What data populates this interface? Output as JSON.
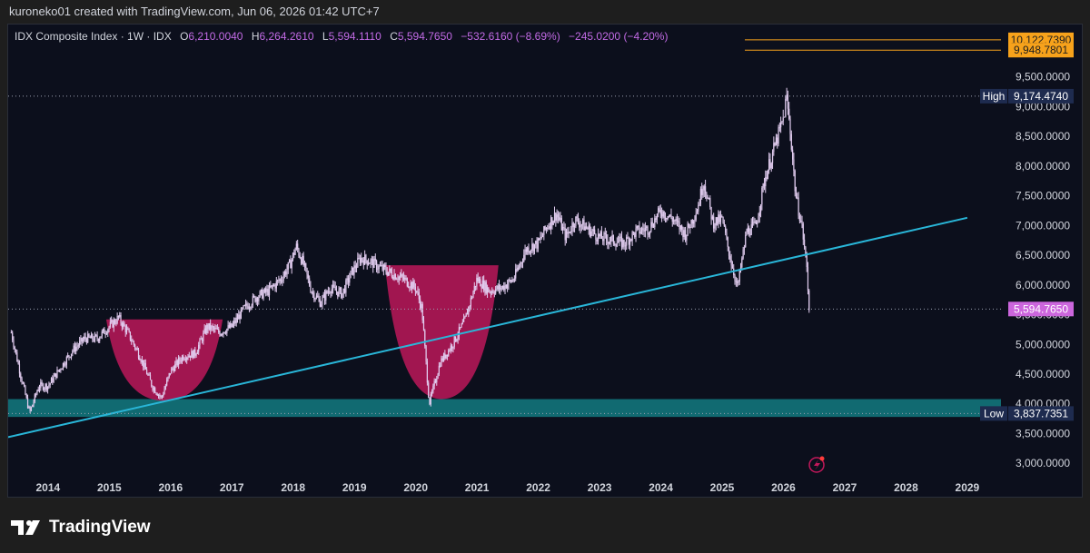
{
  "header": {
    "text": "kuroneko01 created with TradingView.com, Jun 06, 2026 01:42 UTC+7"
  },
  "legend": {
    "symbol": "IDX Composite Index · 1W · IDX",
    "open_label": "O",
    "open": "6,210.0040",
    "high_label": "H",
    "high": "6,264.2610",
    "low_label": "L",
    "low": "5,594.1110",
    "close_label": "C",
    "close": "5,594.7650",
    "change": "−532.6160 (−8.69%)",
    "change2": "−245.0200 (−4.20%)"
  },
  "brand": {
    "name": "TradingView"
  },
  "colors": {
    "background": "#0c0f1c",
    "candle": "#e2cdf0",
    "trendline": "#29b6d8",
    "cup": "#c2185b",
    "support_zone": "#137a80",
    "orange_level": "#f7a21b",
    "price_label": "#cc66dd",
    "hl_label": "#1e2b4f"
  },
  "chart_data": {
    "type": "candlestick",
    "title": "IDX Composite Index · 1W · IDX",
    "x_axis": {
      "ticks": [
        "2014",
        "2015",
        "2016",
        "2017",
        "2018",
        "2019",
        "2020",
        "2021",
        "2022",
        "2023",
        "2024",
        "2025",
        "2026",
        "2027",
        "2028",
        "2029"
      ],
      "range": [
        2013.35,
        2029.55
      ]
    },
    "y_axis": {
      "ticks": [
        "3,000.0000",
        "3,500.0000",
        "4,000.0000",
        "4,500.0000",
        "5,000.0000",
        "5,500.0000",
        "6,000.0000",
        "6,500.0000",
        "7,000.0000",
        "7,500.0000",
        "8,000.0000",
        "8,500.0000",
        "9,000.0000",
        "9,500.0000"
      ],
      "range": [
        2820,
        10380
      ]
    },
    "series": [
      {
        "type": "price",
        "points": [
          [
            2013.4,
            5200
          ],
          [
            2013.55,
            4500
          ],
          [
            2013.7,
            3850
          ],
          [
            2013.85,
            4300
          ],
          [
            2014.0,
            4300
          ],
          [
            2014.2,
            4600
          ],
          [
            2014.4,
            4900
          ],
          [
            2014.6,
            5100
          ],
          [
            2014.8,
            5100
          ],
          [
            2015.0,
            5300
          ],
          [
            2015.15,
            5450
          ],
          [
            2015.3,
            5200
          ],
          [
            2015.5,
            4800
          ],
          [
            2015.7,
            4300
          ],
          [
            2015.85,
            4100
          ],
          [
            2016.0,
            4550
          ],
          [
            2016.2,
            4800
          ],
          [
            2016.4,
            4850
          ],
          [
            2016.6,
            5300
          ],
          [
            2016.8,
            5200
          ],
          [
            2017.0,
            5300
          ],
          [
            2017.2,
            5600
          ],
          [
            2017.4,
            5800
          ],
          [
            2017.6,
            5900
          ],
          [
            2017.8,
            6100
          ],
          [
            2017.95,
            6350
          ],
          [
            2018.05,
            6650
          ],
          [
            2018.15,
            6400
          ],
          [
            2018.3,
            5900
          ],
          [
            2018.45,
            5700
          ],
          [
            2018.6,
            5950
          ],
          [
            2018.8,
            5850
          ],
          [
            2018.95,
            6200
          ],
          [
            2019.1,
            6450
          ],
          [
            2019.25,
            6400
          ],
          [
            2019.4,
            6300
          ],
          [
            2019.6,
            6200
          ],
          [
            2019.8,
            6100
          ],
          [
            2020.0,
            5950
          ],
          [
            2020.1,
            5600
          ],
          [
            2020.22,
            4000
          ],
          [
            2020.4,
            4700
          ],
          [
            2020.6,
            5000
          ],
          [
            2020.8,
            5400
          ],
          [
            2021.0,
            6100
          ],
          [
            2021.2,
            5900
          ],
          [
            2021.4,
            5950
          ],
          [
            2021.6,
            6100
          ],
          [
            2021.8,
            6600
          ],
          [
            2022.0,
            6700
          ],
          [
            2022.15,
            7000
          ],
          [
            2022.3,
            7200
          ],
          [
            2022.45,
            6800
          ],
          [
            2022.6,
            7100
          ],
          [
            2022.8,
            6950
          ],
          [
            2023.0,
            6800
          ],
          [
            2023.2,
            6750
          ],
          [
            2023.4,
            6700
          ],
          [
            2023.6,
            6900
          ],
          [
            2023.8,
            6950
          ],
          [
            2024.0,
            7250
          ],
          [
            2024.2,
            7100
          ],
          [
            2024.4,
            6850
          ],
          [
            2024.6,
            7300
          ],
          [
            2024.7,
            7750
          ],
          [
            2024.85,
            7050
          ],
          [
            2025.0,
            7100
          ],
          [
            2025.1,
            6600
          ],
          [
            2025.25,
            5950
          ],
          [
            2025.4,
            6900
          ],
          [
            2025.55,
            7000
          ],
          [
            2025.7,
            7800
          ],
          [
            2025.85,
            8300
          ],
          [
            2026.0,
            8800
          ],
          [
            2026.05,
            9174
          ],
          [
            2026.12,
            8500
          ],
          [
            2026.2,
            7500
          ],
          [
            2026.3,
            7000
          ],
          [
            2026.38,
            6300
          ],
          [
            2026.42,
            5595
          ]
        ]
      }
    ],
    "annotations": {
      "high": {
        "label": "High",
        "value": "9,174.4740",
        "price": 9174.474
      },
      "low": {
        "label": "Low",
        "value": "3,837.7351",
        "price": 3837.7351
      },
      "last_price": {
        "value": "5,594.7650",
        "price": 5594.765
      },
      "orange_levels": [
        {
          "value": "10,122.7390",
          "price": 10122.739
        },
        {
          "value": "9,948.7801",
          "price": 9948.7801
        }
      ],
      "trendline": {
        "from": [
          2013.35,
          3440
        ],
        "to": [
          2029.0,
          7130
        ]
      },
      "support_zone": {
        "from_price": 3780,
        "to_price": 4080
      },
      "cups": [
        {
          "x_start": 2014.95,
          "x_end": 2016.85,
          "top_price": 5420,
          "bottom_price": 4050
        },
        {
          "x_start": 2019.5,
          "x_end": 2021.35,
          "top_price": 6330,
          "bottom_price": 4080
        }
      ]
    },
    "grid": false,
    "legend_position": "top-left"
  }
}
